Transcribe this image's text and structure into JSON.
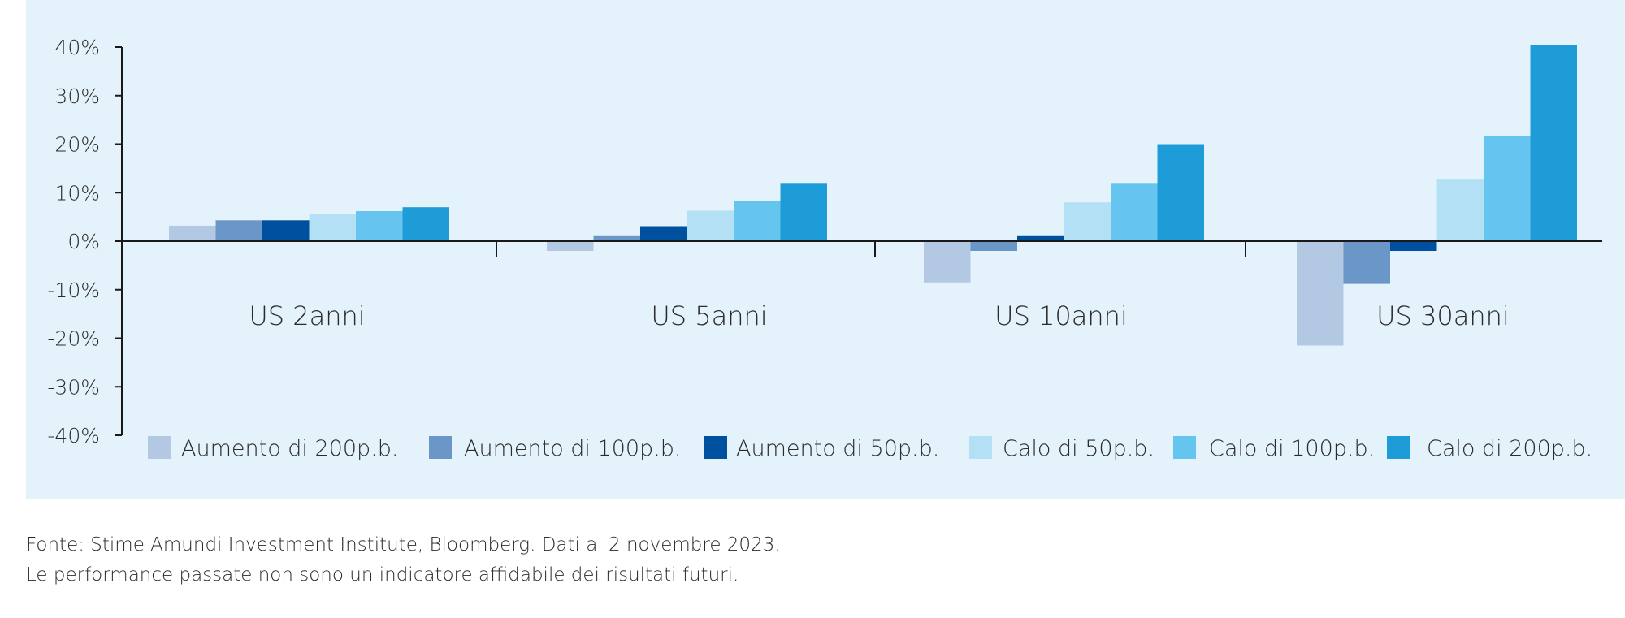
{
  "chart_data": {
    "type": "bar",
    "categories": [
      "US 2anni",
      "US 5anni",
      "US 10anni",
      "US 30anni"
    ],
    "series": [
      {
        "name": "Aumento di 200p.b.",
        "color": "#b3c9e3",
        "values": [
          3.2,
          -2.0,
          -8.5,
          -21.5
        ]
      },
      {
        "name": "Aumento di 100p.b.",
        "color": "#6a97c8",
        "values": [
          4.3,
          1.2,
          -2.0,
          -8.8
        ]
      },
      {
        "name": "Aumento di 50p.b.",
        "color": "#0050a0",
        "values": [
          4.3,
          3.1,
          1.2,
          -2.0
        ]
      },
      {
        "name": "Calo di 50p.b.",
        "color": "#b3e0f5",
        "values": [
          5.5,
          6.3,
          8.0,
          12.7
        ]
      },
      {
        "name": "Calo di 100p.b.",
        "color": "#66c5ee",
        "values": [
          6.2,
          8.3,
          12.0,
          21.6
        ]
      },
      {
        "name": "Calo di 200p.b.",
        "color": "#1e9cd7",
        "values": [
          7.0,
          12.0,
          20.0,
          40.5
        ]
      }
    ],
    "y_ticks": [
      "40%",
      "30%",
      "20%",
      "10%",
      "0%",
      "-10%",
      "-20%",
      "-30%",
      "-40%"
    ],
    "ylim": [
      -40,
      40
    ],
    "grid": false,
    "legend_position": "bottom"
  },
  "footnotes": {
    "source": "Fonte: Stime Amundi Investment Institute, Bloomberg. Dati al 2 novembre 2023.",
    "disclaimer": "Le performance passate non sono un indicatore affidabile dei risultati futuri."
  },
  "colors": {
    "panel_background": "#e4f3fb",
    "axis": "#1a1a1a",
    "text": "#2b2b2b"
  }
}
